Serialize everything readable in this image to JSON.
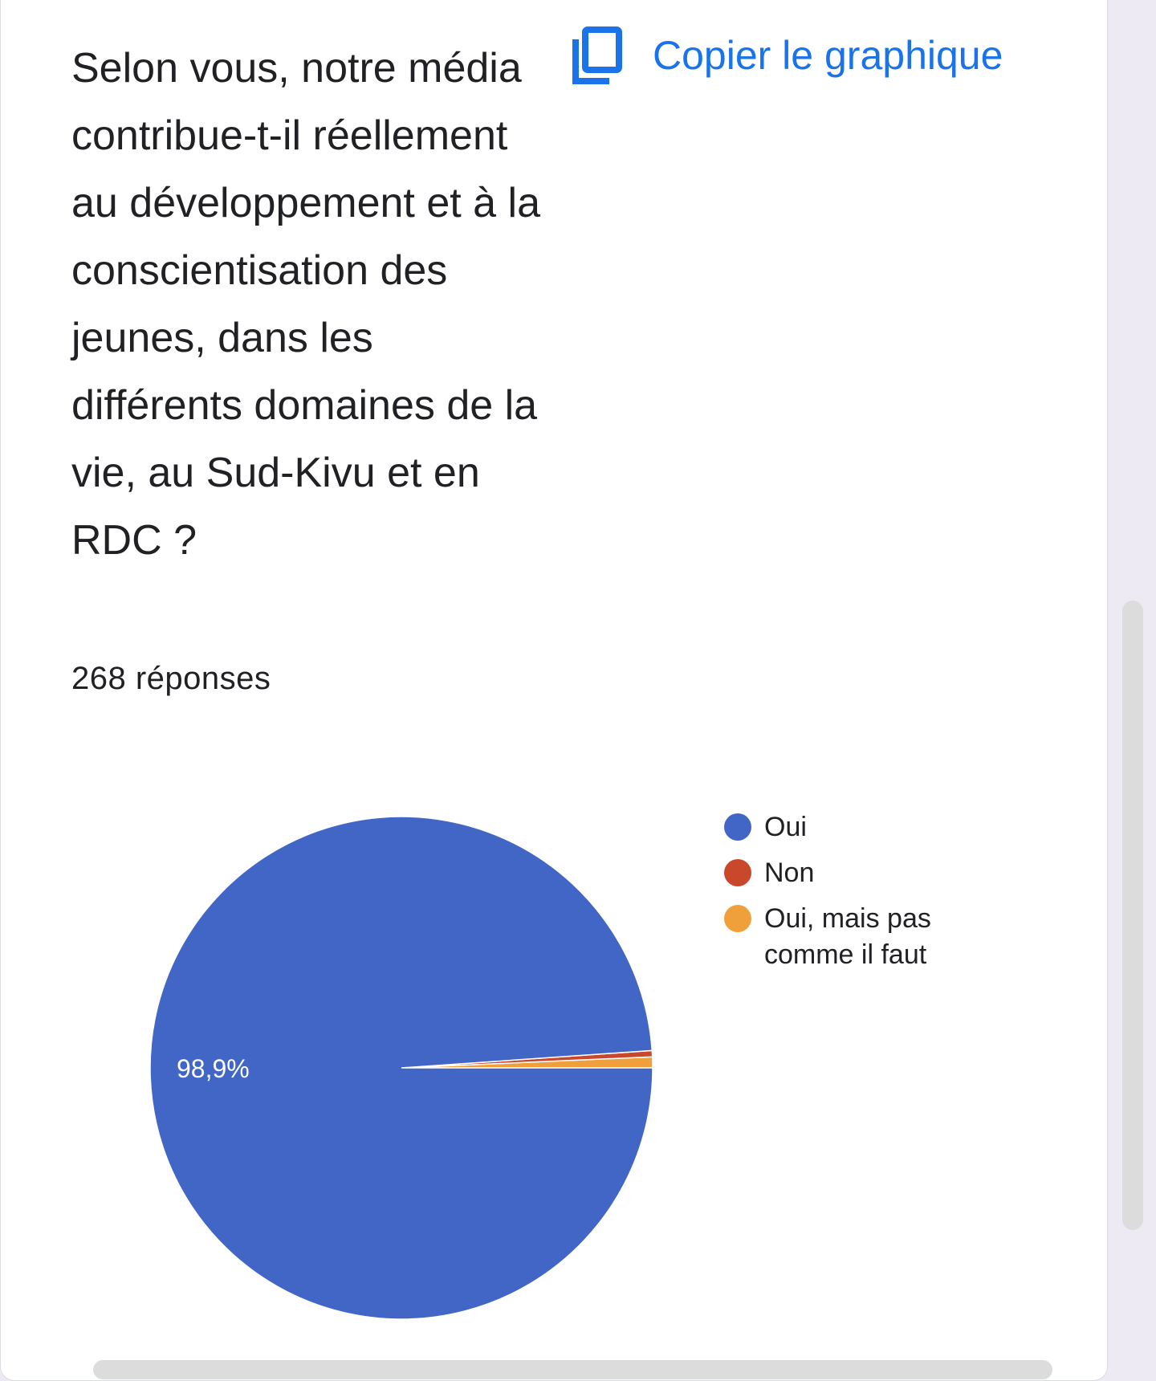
{
  "card": {
    "question": "Selon vous, notre média contribue-t-il réellement au développement et à la conscientisation des jeunes, dans les différents domaines de la vie, au Sud-Kivu et en RDC ?",
    "responses_label": "268 réponses",
    "copy_button": {
      "label": "Copier le graphique",
      "icon": "copy-icon"
    }
  },
  "chart_data": {
    "type": "pie",
    "categories": [
      "Oui",
      "Non",
      "Oui, mais pas comme il faut"
    ],
    "values": [
      98.9,
      0.4,
      0.7
    ],
    "value_labels": [
      "98,9%",
      "",
      ""
    ],
    "colors": [
      "#4166c6",
      "#c9472b",
      "#f0a03a"
    ],
    "legend": "right"
  }
}
